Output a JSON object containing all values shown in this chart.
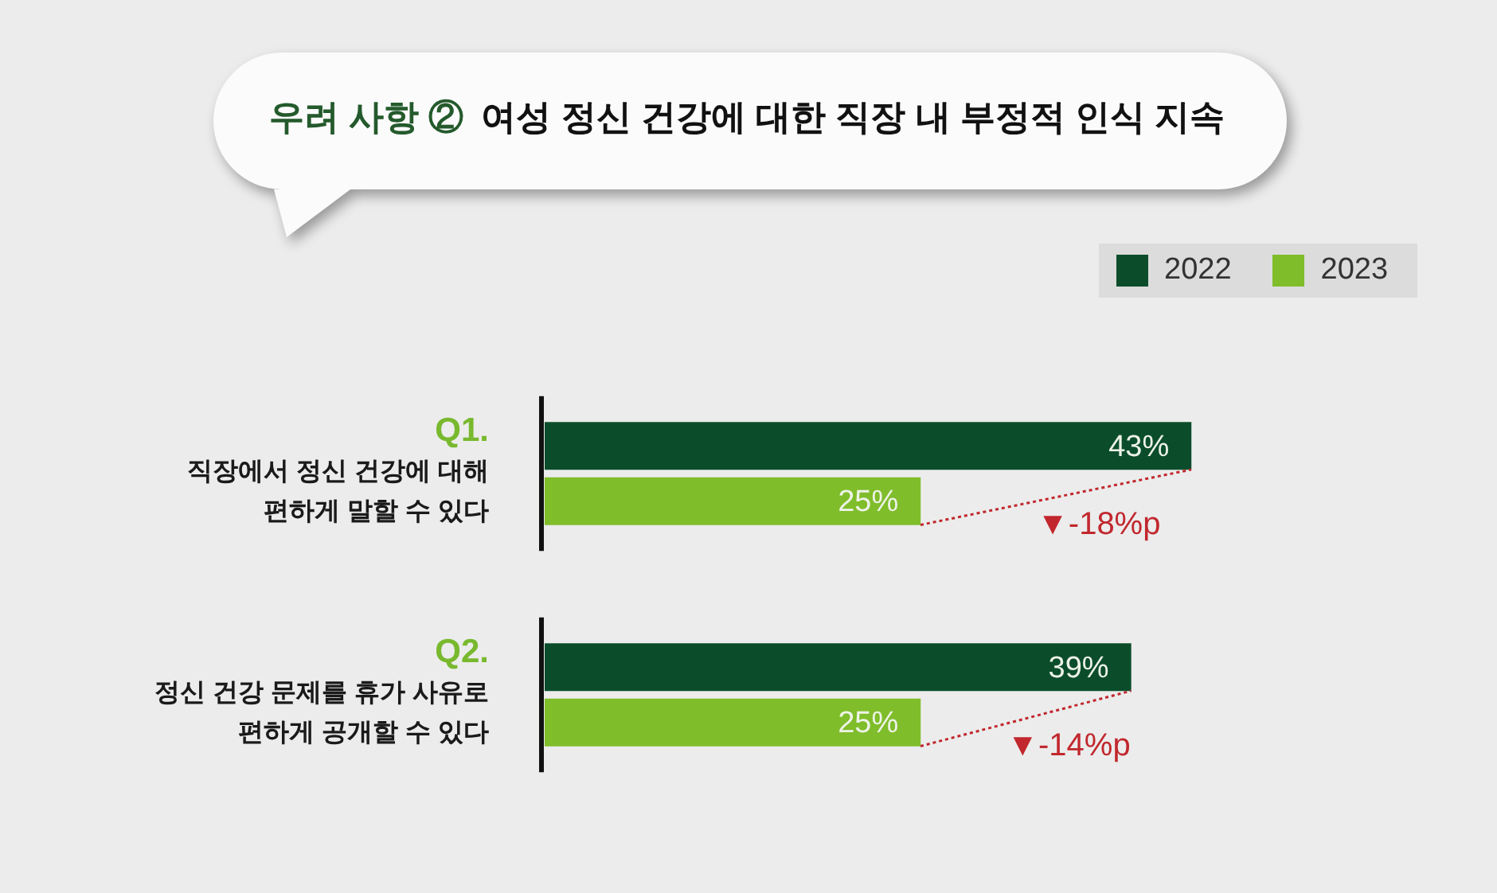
{
  "chart_data": {
    "type": "bar",
    "orientation": "horizontal",
    "title": "우려 사항 ②",
    "subtitle": "여성 정신 건강에 대한 직장 내 부정적 인식 지속",
    "categories": [
      "Q1.\n직장에서 정신 건강에 대해\n편하게 말할 수 있다",
      "Q2.\n정신 건강 문제를 휴가 사유로\n편하게 공개할 수 있다"
    ],
    "series": [
      {
        "name": "2022",
        "color": "#0b4d2b",
        "values": [
          43,
          39
        ],
        "value_labels": [
          "43%",
          "39%"
        ]
      },
      {
        "name": "2023",
        "color": "#7fbd2a",
        "values": [
          25,
          25
        ],
        "value_labels": [
          "25%",
          "25%"
        ]
      }
    ],
    "legend": "top right",
    "tick_labels": "y",
    "annotations": [
      "▼-18%p",
      "▼-14%p"
    ]
  }
}
